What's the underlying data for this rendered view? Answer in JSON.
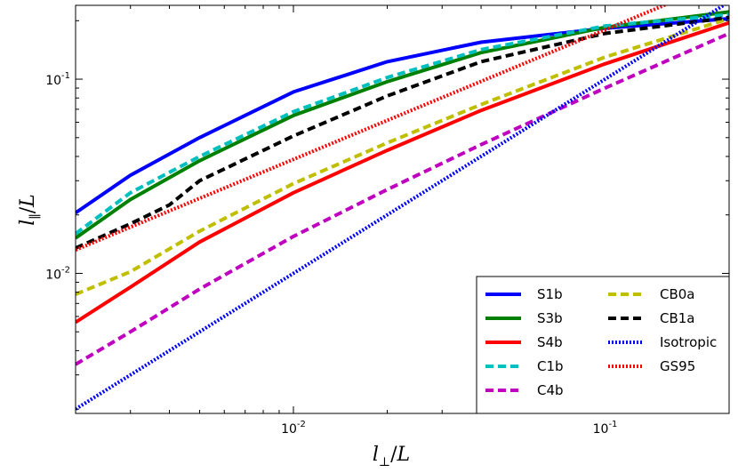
{
  "chart_data": {
    "type": "line",
    "title": "",
    "xlabel": "l⊥/L",
    "ylabel": "l∥/L",
    "xscale": "log",
    "yscale": "log",
    "xlim": [
      0.002,
      0.25
    ],
    "ylim": [
      0.0019,
      0.24
    ],
    "grid": false,
    "legend_position": "lower-right",
    "xticks": [
      {
        "value": 0.01,
        "base": "10",
        "exp": "-2"
      },
      {
        "value": 0.1,
        "base": "10",
        "exp": "-1"
      }
    ],
    "yticks": [
      {
        "value": 0.01,
        "base": "10",
        "exp": "-2"
      },
      {
        "value": 0.1,
        "base": "10",
        "exp": "-1"
      }
    ],
    "series": [
      {
        "name": "S1b",
        "color": "#0000ff",
        "style": "solid",
        "x": [
          0.002,
          0.003,
          0.005,
          0.01,
          0.02,
          0.04,
          0.1,
          0.25
        ],
        "y": [
          0.0205,
          0.032,
          0.05,
          0.086,
          0.123,
          0.155,
          0.183,
          0.205
        ]
      },
      {
        "name": "S3b",
        "color": "#008000",
        "style": "solid",
        "x": [
          0.002,
          0.003,
          0.005,
          0.01,
          0.02,
          0.04,
          0.1,
          0.25
        ],
        "y": [
          0.0152,
          0.024,
          0.038,
          0.065,
          0.097,
          0.137,
          0.185,
          0.222
        ]
      },
      {
        "name": "S4b",
        "color": "#ff0000",
        "style": "solid",
        "x": [
          0.002,
          0.003,
          0.005,
          0.01,
          0.02,
          0.04,
          0.1,
          0.25
        ],
        "y": [
          0.0056,
          0.0085,
          0.0145,
          0.026,
          0.043,
          0.069,
          0.12,
          0.195
        ]
      },
      {
        "name": "C1b",
        "color": "#00bfbf",
        "style": "dashed",
        "x": [
          0.002,
          0.003,
          0.005,
          0.01,
          0.02,
          0.04,
          0.1,
          0.25
        ],
        "y": [
          0.016,
          0.026,
          0.04,
          0.068,
          0.102,
          0.142,
          0.188,
          0.215
        ]
      },
      {
        "name": "C4b",
        "color": "#bf00bf",
        "style": "dashed",
        "x": [
          0.002,
          0.003,
          0.005,
          0.01,
          0.02,
          0.04,
          0.1,
          0.25
        ],
        "y": [
          0.0034,
          0.005,
          0.0083,
          0.0155,
          0.027,
          0.046,
          0.09,
          0.172
        ]
      },
      {
        "name": "CB0a",
        "color": "#bfbf00",
        "style": "dashed",
        "x": [
          0.002,
          0.003,
          0.005,
          0.01,
          0.02,
          0.04,
          0.1,
          0.25
        ],
        "y": [
          0.0078,
          0.0102,
          0.0165,
          0.029,
          0.047,
          0.074,
          0.13,
          0.205
        ]
      },
      {
        "name": "CB1a",
        "color": "#000000",
        "style": "dashed",
        "x": [
          0.002,
          0.003,
          0.004,
          0.005,
          0.01,
          0.02,
          0.04,
          0.1,
          0.25
        ],
        "y": [
          0.0135,
          0.018,
          0.0225,
          0.03,
          0.051,
          0.082,
          0.123,
          0.172,
          0.208
        ]
      },
      {
        "name": "Isotropic",
        "color": "#0000ff",
        "style": "dotted",
        "x": [
          0.002,
          0.25
        ],
        "y": [
          0.002,
          0.25
        ]
      },
      {
        "name": "GS95",
        "color": "#ff0000",
        "style": "dotted",
        "x": [
          0.002,
          0.2
        ],
        "y": [
          0.0132,
          0.285
        ]
      }
    ]
  }
}
